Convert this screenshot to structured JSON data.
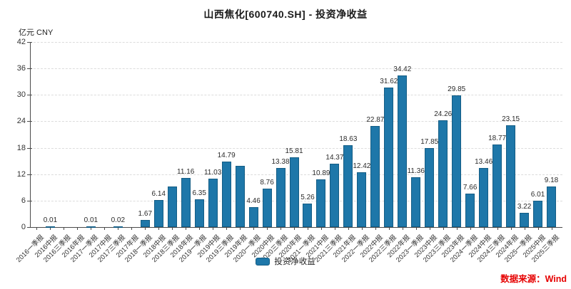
{
  "header": {
    "title": "山西焦化[600740.SH] - 投资净收益"
  },
  "axis_unit": "亿元 CNY",
  "legend": {
    "label": "投资净收益"
  },
  "source": {
    "label": "数据来源：Wind"
  },
  "colors": {
    "bar_fill": "#1e77a9",
    "bar_border": "#145d85",
    "grid": "#dcdcdc",
    "axis": "#4a4a4a",
    "text": "#333333",
    "source_text": "#e60000"
  },
  "chart_data": {
    "type": "bar",
    "title": "山西焦化[600740.SH] - 投资净收益",
    "ylabel": "亿元 CNY",
    "ylim": [
      0,
      42
    ],
    "ytick_step": 6,
    "grid": "horizontal-dashed",
    "legend_entries": [
      "投资净收益"
    ],
    "legend_position": "bottom-center",
    "categories": [
      "2016一季报",
      "2016中报",
      "2016三季报",
      "2016年报",
      "2017一季报",
      "2017中报",
      "2017三季报",
      "2017年报",
      "2018一季报",
      "2018中报",
      "2018三季报",
      "2018年报",
      "2019一季报",
      "2019中报",
      "2019三季报",
      "2019年报",
      "2020一季报",
      "2020中报",
      "2020三季报",
      "2020年报",
      "2021一季报",
      "2021中报",
      "2021三季报",
      "2021年报",
      "2022一季报",
      "2022中报",
      "2022三季报",
      "2022年报",
      "2023一季报",
      "2023中报",
      "2023三季报",
      "2023年报",
      "2024一季报",
      "2024中报",
      "2024三季报",
      "2024年报",
      "2025一季报",
      "2025中报",
      "2025三季报"
    ],
    "values": [
      null,
      0.01,
      null,
      null,
      0.01,
      null,
      0.02,
      null,
      1.67,
      6.14,
      9.2,
      11.16,
      6.35,
      11.03,
      14.79,
      13.9,
      4.46,
      8.76,
      13.38,
      15.81,
      5.26,
      10.89,
      14.37,
      18.63,
      12.42,
      22.87,
      31.62,
      34.42,
      11.36,
      17.85,
      24.26,
      29.85,
      7.66,
      13.46,
      18.77,
      23.15,
      3.22,
      6.01,
      9.18
    ],
    "bar_labels": [
      "",
      "0.01",
      "",
      "",
      "0.01",
      "",
      "0.02",
      "",
      "1.67",
      "6.14",
      "",
      "11.16",
      "6.35",
      "11.03",
      "14.79",
      "",
      "4.46",
      "8.76",
      "13.38",
      "15.81",
      "5.26",
      "10.89",
      "14.37",
      "18.63",
      "12.42",
      "22.87",
      "31.62",
      "34.42",
      "11.36",
      "17.85",
      "24.26",
      "29.85",
      "7.66",
      "13.46",
      "18.77",
      "23.15",
      "3.22",
      "6.01",
      "9.18"
    ]
  }
}
